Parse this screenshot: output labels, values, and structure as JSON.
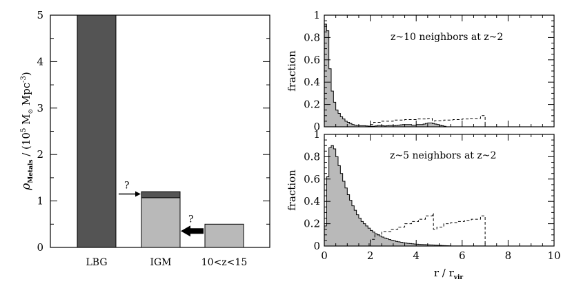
{
  "chart_data": [
    {
      "type": "bar",
      "panel": "left",
      "categories": [
        "LBG",
        "IGM",
        "10<z<15"
      ],
      "values": [
        5.0,
        1.2,
        0.5
      ],
      "igm_split": {
        "light_part": 1.07,
        "dark_top": 1.2
      },
      "ylim": [
        0,
        5
      ],
      "yticks": [
        "0",
        "1",
        "2",
        "3",
        "4",
        "5"
      ],
      "ylabel_parts": {
        "rho": "ρ",
        "sub": "Metals",
        "rest": " / (10",
        "exp": "5",
        "units": " M",
        "sun": "⊙",
        "mpc": " Mpc",
        "mpcexp": "-3",
        "close": ")"
      },
      "annotations": [
        {
          "text": "?",
          "arrow": "right",
          "y": 1.15
        },
        {
          "text": "?",
          "arrow": "left",
          "y": 0.5
        }
      ],
      "colors": {
        "dark": "#545454",
        "light": "#b9b9b9"
      }
    },
    {
      "type": "area",
      "panel": "top-right",
      "label": "z~10 neighbors at z~2",
      "xlim": [
        0,
        10
      ],
      "ylim": [
        0,
        1
      ],
      "yticks": [
        "0",
        "0.2",
        "0.4",
        "0.6",
        "0.8",
        "1"
      ],
      "ylabel": "fraction",
      "bin_width": 0.1,
      "filled": [
        0.92,
        0.86,
        0.52,
        0.32,
        0.22,
        0.15,
        0.12,
        0.09,
        0.07,
        0.05,
        0.04,
        0.03,
        0.02,
        0.015,
        0.012,
        0.01,
        0.01,
        0.01,
        0.008,
        0.006,
        0.005,
        0.005,
        0.008,
        0.012,
        0.012,
        0.01,
        0.008,
        0.01,
        0.012,
        0.012,
        0.01,
        0.012,
        0.015,
        0.018,
        0.02,
        0.02,
        0.02,
        0.02,
        0.015,
        0.015,
        0.02,
        0.02,
        0.02,
        0.025,
        0.03,
        0.035,
        0.035,
        0.03,
        0.025,
        0.02,
        0.015,
        0.01,
        0.005,
        0,
        0,
        0,
        0,
        0,
        0,
        0,
        0,
        0,
        0,
        0,
        0,
        0,
        0,
        0,
        0,
        0,
        0
      ],
      "dashed_steps": [
        [
          0,
          0
        ],
        [
          2.0,
          0.02
        ],
        [
          2.15,
          0.04
        ],
        [
          2.5,
          0.05
        ],
        [
          3.0,
          0.06
        ],
        [
          3.5,
          0.065
        ],
        [
          4.0,
          0.07
        ],
        [
          4.5,
          0.075
        ],
        [
          4.7,
          0.03
        ],
        [
          4.8,
          0.055
        ],
        [
          5.2,
          0.06
        ],
        [
          5.6,
          0.065
        ],
        [
          6.0,
          0.07
        ],
        [
          6.3,
          0.075
        ],
        [
          6.8,
          0.1
        ],
        [
          7.0,
          0.0
        ]
      ]
    },
    {
      "type": "area",
      "panel": "bottom-right",
      "label": "z~5 neighbors at z~2",
      "xlim": [
        0,
        10
      ],
      "ylim": [
        0,
        1
      ],
      "xticks": [
        "0",
        "2",
        "4",
        "6",
        "8",
        "10"
      ],
      "yticks": [
        "0",
        "0.2",
        "0.4",
        "0.6",
        "0.8",
        "1"
      ],
      "xlabel_parts": {
        "main": "r / r",
        "sub": "vir"
      },
      "ylabel": "fraction",
      "bin_width": 0.1,
      "filled": [
        0.18,
        0.62,
        0.88,
        0.9,
        0.87,
        0.8,
        0.72,
        0.65,
        0.58,
        0.52,
        0.46,
        0.41,
        0.36,
        0.32,
        0.28,
        0.25,
        0.22,
        0.2,
        0.18,
        0.16,
        0.14,
        0.125,
        0.11,
        0.1,
        0.09,
        0.08,
        0.072,
        0.065,
        0.058,
        0.052,
        0.047,
        0.042,
        0.038,
        0.034,
        0.03,
        0.027,
        0.024,
        0.022,
        0.02,
        0.018,
        0.016,
        0.015,
        0.014,
        0.013,
        0.012,
        0.011,
        0.01,
        0.009,
        0.008,
        0.007,
        0.006,
        0.005,
        0.004,
        0.003,
        0.002,
        0.001,
        0.001,
        0.001,
        0.001,
        0.001,
        0.001,
        0.001,
        0.001,
        0.001,
        0.001,
        0.001,
        0.001,
        0.001,
        0.001,
        0.001,
        0
      ],
      "dashed_steps": [
        [
          1.95,
          0.03
        ],
        [
          2.0,
          0.06
        ],
        [
          2.2,
          0.1
        ],
        [
          2.5,
          0.13
        ],
        [
          2.9,
          0.15
        ],
        [
          3.2,
          0.17
        ],
        [
          3.5,
          0.2
        ],
        [
          3.8,
          0.22
        ],
        [
          4.1,
          0.24
        ],
        [
          4.4,
          0.27
        ],
        [
          4.7,
          0.29
        ],
        [
          4.75,
          0.15
        ],
        [
          4.9,
          0.17
        ],
        [
          5.2,
          0.2
        ],
        [
          5.5,
          0.21
        ],
        [
          5.8,
          0.22
        ],
        [
          6.1,
          0.23
        ],
        [
          6.4,
          0.24
        ],
        [
          6.8,
          0.27
        ],
        [
          7.0,
          0.0
        ]
      ]
    }
  ]
}
